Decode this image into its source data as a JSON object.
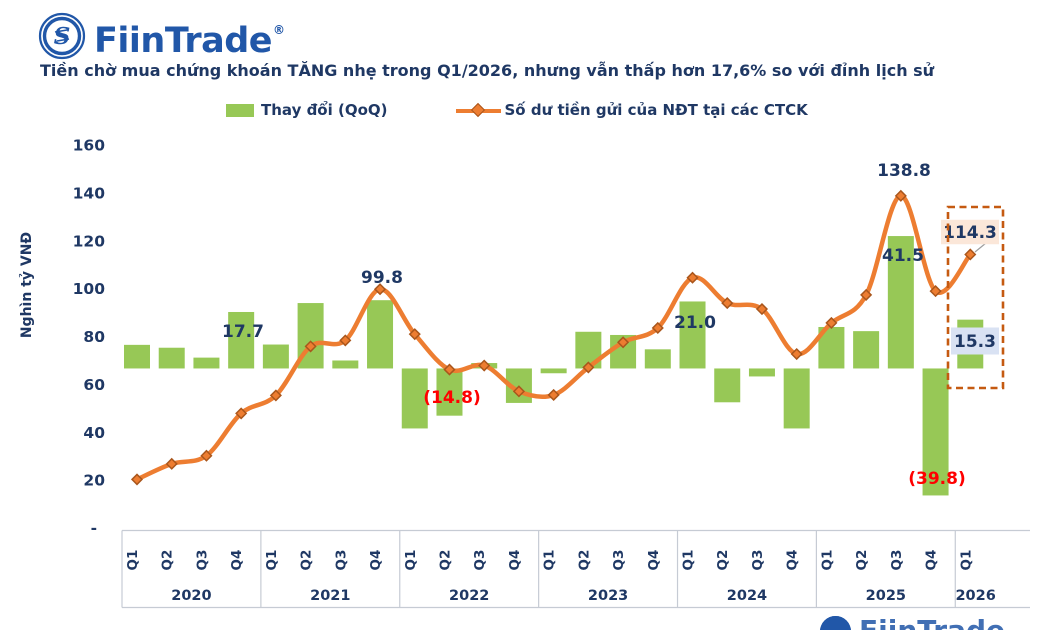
{
  "brand": {
    "name": "FiinTrade",
    "registered_mark": "®"
  },
  "title": "Tiền chờ mua chứng khoán TĂNG nhẹ trong Q1/2026, nhưng vẫn thấp hơn 17,6% so với đỉnh lịch sử",
  "legend": {
    "bar_label": "Thay đổi (QoQ)",
    "line_label": "Số dư tiền gửi của NĐT tại các CTCK"
  },
  "colors": {
    "navy": "#1f3864",
    "green": "#97c856",
    "orange": "#ed7d31",
    "orange_dark": "#c55a11",
    "red": "#ff0000",
    "peach_bg": "#fbe7d9",
    "blue_bg": "#d9e2f3",
    "axis_gray": "#c6cbd4",
    "brand_blue": "#2157a8"
  },
  "chart_data": {
    "type": "combo (bar + smoothed line)",
    "title": "Tiền chờ mua chứng khoán TĂNG nhẹ trong Q1/2026, nhưng vẫn thấp hơn 17,6% so với đỉnh lịch sử",
    "ylabel": "Nghìn tỷ VNĐ",
    "ylim": [
      0,
      160
    ],
    "grid": "off",
    "legend_position": "top",
    "y_ticks": [
      {
        "value": 160,
        "label": "160"
      },
      {
        "value": 140,
        "label": "140"
      },
      {
        "value": 120,
        "label": "120"
      },
      {
        "value": 100,
        "label": "100"
      },
      {
        "value": 80,
        "label": "80"
      },
      {
        "value": 60,
        "label": "60"
      },
      {
        "value": 40,
        "label": "40"
      },
      {
        "value": 20,
        "label": "20"
      },
      {
        "value": 0,
        "label": "-"
      }
    ],
    "x_axis": {
      "quarter_labels": [
        "Q1",
        "Q2",
        "Q3",
        "Q4"
      ],
      "years": [
        {
          "label": "2020",
          "quarters": 4
        },
        {
          "label": "2021",
          "quarters": 4
        },
        {
          "label": "2022",
          "quarters": 4
        },
        {
          "label": "2023",
          "quarters": 4
        },
        {
          "label": "2024",
          "quarters": 4
        },
        {
          "label": "2025",
          "quarters": 4
        },
        {
          "label": "2026",
          "quarters": 1
        }
      ]
    },
    "series": [
      {
        "name": "Thay đổi (QoQ)",
        "type": "bar",
        "axis": "secondary (hidden, -50..70 mapped onto 0..160)",
        "values": [
          7.4,
          6.5,
          3.4,
          17.7,
          7.5,
          20.5,
          2.5,
          21.4,
          -18.8,
          -14.8,
          1.7,
          -10.8,
          -1.5,
          11.5,
          10.5,
          6.0,
          21.0,
          -10.6,
          -2.5,
          -18.8,
          13.0,
          11.7,
          41.5,
          -39.8,
          15.3
        ]
      },
      {
        "name": "Số dư tiền gửi của NĐT tại các CTCK",
        "type": "line",
        "axis": "primary",
        "values": [
          20.3,
          26.8,
          30.2,
          47.9,
          55.4,
          75.9,
          78.4,
          99.8,
          81.0,
          66.2,
          67.9,
          57.1,
          55.6,
          67.1,
          77.6,
          83.6,
          104.6,
          94.0,
          91.5,
          72.7,
          85.7,
          97.4,
          138.8,
          99.0,
          114.3
        ]
      }
    ],
    "annotations": {
      "bar_labels": [
        {
          "index": 3,
          "text": "17.7",
          "color": "navy"
        },
        {
          "index": 9,
          "text": "(14.8)",
          "color": "red"
        },
        {
          "index": 16,
          "text": "21.0",
          "color": "navy"
        },
        {
          "index": 22,
          "text": "41.5",
          "color": "navy"
        },
        {
          "index": 23,
          "text": "(39.8)",
          "color": "red"
        },
        {
          "index": 24,
          "text": "15.3",
          "color": "navy",
          "boxed": "blue_bg"
        }
      ],
      "line_labels": [
        {
          "index": 7,
          "text": "99.8"
        },
        {
          "index": 22,
          "text": "138.8"
        },
        {
          "index": 24,
          "text": "114.3",
          "boxed": "peach_bg"
        }
      ],
      "highlight": "dashed box around Q1/2026"
    }
  }
}
